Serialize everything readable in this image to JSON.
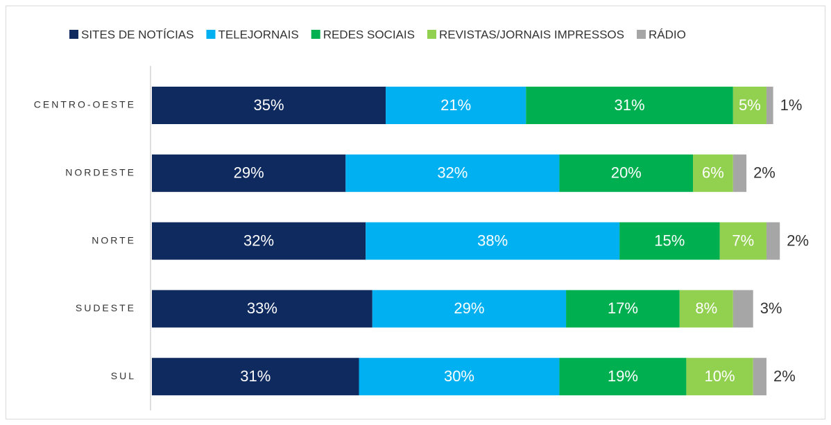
{
  "chart_data": {
    "type": "stacked-bar-horizontal",
    "categories": [
      "CENTRO-OESTE",
      "NORDESTE",
      "NORTE",
      "SUDESTE",
      "SUL"
    ],
    "series": [
      {
        "name": "SITES DE NOTÍCIAS",
        "color": "#0f2a5f",
        "values": [
          35,
          29,
          32,
          33,
          31
        ],
        "value_labels": [
          "35%",
          "29%",
          "32%",
          "33%",
          "31%"
        ]
      },
      {
        "name": "TELEJORNAIS",
        "color": "#00b0f0",
        "values": [
          21,
          32,
          38,
          29,
          30
        ],
        "value_labels": [
          "21%",
          "32%",
          "38%",
          "29%",
          "30%"
        ]
      },
      {
        "name": "REDES SOCIAIS",
        "color": "#00b050",
        "values": [
          31,
          20,
          15,
          17,
          19
        ],
        "value_labels": [
          "31%",
          "20%",
          "15%",
          "17%",
          "19%"
        ]
      },
      {
        "name": "REVISTAS/JORNAIS IMPRESSOS",
        "color": "#92d050",
        "values": [
          5,
          6,
          7,
          8,
          10
        ],
        "value_labels": [
          "5%",
          "6%",
          "7%",
          "8%",
          "10%"
        ]
      },
      {
        "name": "RÁDIO",
        "color": "#a6a6a6",
        "values": [
          1,
          2,
          2,
          3,
          2
        ],
        "value_labels": [
          "1%",
          "2%",
          "2%",
          "3%",
          "2%"
        ]
      }
    ],
    "legend": "top"
  }
}
